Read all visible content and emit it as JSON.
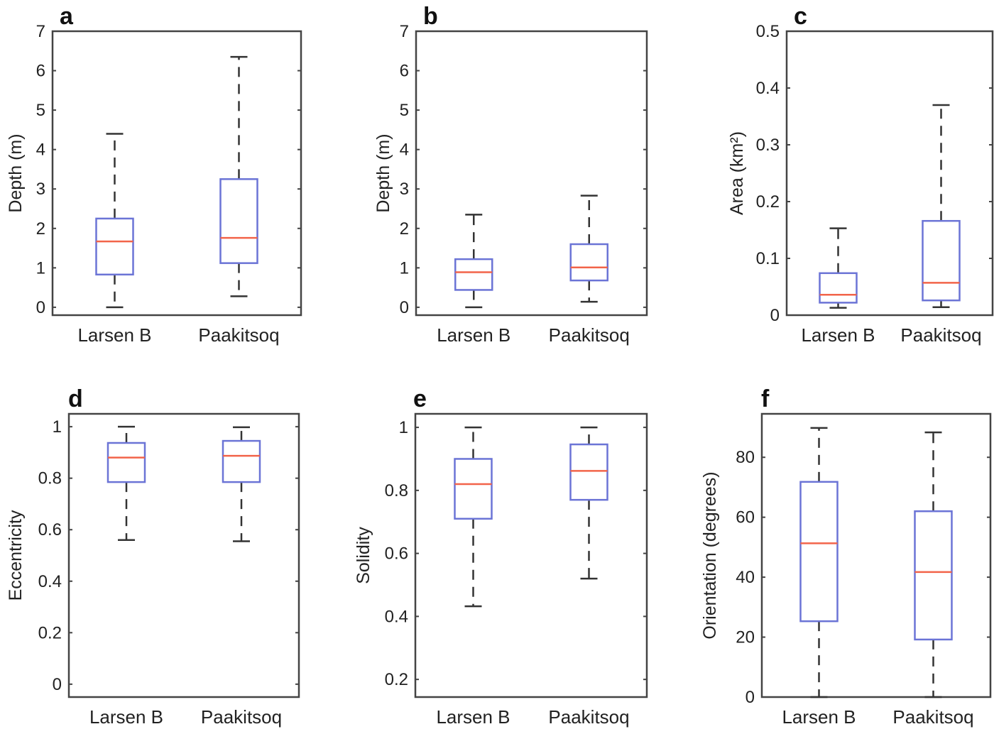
{
  "colors": {
    "box": "#6b74d6",
    "median": "#f2644a",
    "whisker": "#333333",
    "frame": "#444444"
  },
  "chart_data": [
    {
      "type": "box",
      "panel": "a",
      "title": "a",
      "xlabel": "",
      "ylabel": "Depth (m)",
      "ylim": [
        -0.2,
        7
      ],
      "yticks": [
        0,
        1,
        2,
        3,
        4,
        5,
        6,
        7
      ],
      "ytick_labels": [
        "0",
        "1",
        "2",
        "3",
        "4",
        "5",
        "6",
        "7"
      ],
      "categories": [
        "Larsen B",
        "Paakitsoq"
      ],
      "series": [
        {
          "name": "Larsen B",
          "min": 0.0,
          "q1": 0.83,
          "median": 1.67,
          "q3": 2.25,
          "max": 4.4
        },
        {
          "name": "Paakitsoq",
          "min": 0.28,
          "q1": 1.12,
          "median": 1.76,
          "q3": 3.25,
          "max": 6.35
        }
      ]
    },
    {
      "type": "box",
      "panel": "b",
      "title": "b",
      "xlabel": "",
      "ylabel": "Depth (m)",
      "ylim": [
        -0.2,
        7
      ],
      "yticks": [
        0,
        1,
        2,
        3,
        4,
        5,
        6,
        7
      ],
      "ytick_labels": [
        "0",
        "1",
        "2",
        "3",
        "4",
        "5",
        "6",
        "7"
      ],
      "categories": [
        "Larsen B",
        "Paakitsoq"
      ],
      "series": [
        {
          "name": "Larsen B",
          "min": 0.0,
          "q1": 0.44,
          "median": 0.89,
          "q3": 1.22,
          "max": 2.35
        },
        {
          "name": "Paakitsoq",
          "min": 0.14,
          "q1": 0.68,
          "median": 1.01,
          "q3": 1.6,
          "max": 2.83
        }
      ]
    },
    {
      "type": "box",
      "panel": "c",
      "title": "c",
      "xlabel": "",
      "ylabel": "Area (km²)",
      "ylim": [
        0,
        0.5
      ],
      "yticks": [
        0,
        0.1,
        0.2,
        0.3,
        0.4,
        0.5
      ],
      "ytick_labels": [
        "0",
        "0.1",
        "0.2",
        "0.3",
        "0.4",
        "0.5"
      ],
      "categories": [
        "Larsen B",
        "Paakitsoq"
      ],
      "series": [
        {
          "name": "Larsen B",
          "min": 0.013,
          "q1": 0.022,
          "median": 0.036,
          "q3": 0.074,
          "max": 0.153
        },
        {
          "name": "Paakitsoq",
          "min": 0.014,
          "q1": 0.026,
          "median": 0.057,
          "q3": 0.166,
          "max": 0.37
        }
      ]
    },
    {
      "type": "box",
      "panel": "d",
      "title": "d",
      "xlabel": "",
      "ylabel": "Eccentricity",
      "ylim": [
        -0.05,
        1.05
      ],
      "yticks": [
        0,
        0.2,
        0.4,
        0.6,
        0.8,
        1
      ],
      "ytick_labels": [
        "0",
        "0.2",
        "0.4",
        "0.6",
        "0.8",
        "1"
      ],
      "categories": [
        "Larsen B",
        "Paakitsoq"
      ],
      "series": [
        {
          "name": "Larsen B",
          "min": 0.56,
          "q1": 0.785,
          "median": 0.88,
          "q3": 0.937,
          "max": 1.0
        },
        {
          "name": "Paakitsoq",
          "min": 0.555,
          "q1": 0.785,
          "median": 0.887,
          "q3": 0.945,
          "max": 0.998
        }
      ]
    },
    {
      "type": "box",
      "panel": "e",
      "title": "e",
      "xlabel": "",
      "ylabel": "Solidity",
      "ylim": [
        0.144,
        1.043
      ],
      "yticks": [
        0.2,
        0.4,
        0.6,
        0.8,
        1
      ],
      "ytick_labels": [
        "0.2",
        "0.4",
        "0.6",
        "0.8",
        "1"
      ],
      "categories": [
        "Larsen B",
        "Paakitsoq"
      ],
      "series": [
        {
          "name": "Larsen B",
          "min": 0.432,
          "q1": 0.71,
          "median": 0.82,
          "q3": 0.9,
          "max": 1.0
        },
        {
          "name": "Paakitsoq",
          "min": 0.52,
          "q1": 0.77,
          "median": 0.862,
          "q3": 0.946,
          "max": 1.0
        }
      ]
    },
    {
      "type": "box",
      "panel": "f",
      "title": "f",
      "xlabel": "",
      "ylabel": "Orientation (degrees)",
      "ylim": [
        0,
        94.5
      ],
      "yticks": [
        0,
        20,
        40,
        60,
        80
      ],
      "ytick_labels": [
        "0",
        "20",
        "40",
        "60",
        "80"
      ],
      "categories": [
        "Larsen B",
        "Paakitsoq"
      ],
      "series": [
        {
          "name": "Larsen B",
          "min": 0,
          "q1": 25.3,
          "median": 51.3,
          "q3": 71.8,
          "max": 89.8
        },
        {
          "name": "Paakitsoq",
          "min": 0,
          "q1": 19.2,
          "median": 41.7,
          "q3": 62.0,
          "max": 88.3
        }
      ]
    }
  ]
}
